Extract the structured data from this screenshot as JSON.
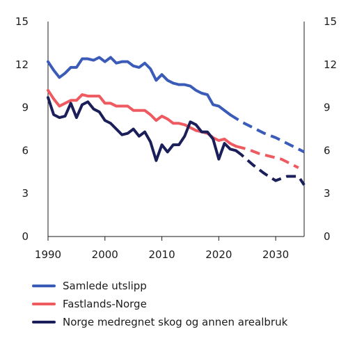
{
  "chart_data": {
    "type": "line",
    "title": "",
    "xlabel": "",
    "ylabel": "",
    "xlim": [
      1990,
      2035
    ],
    "ylim": [
      0,
      15
    ],
    "x_ticks": [
      1990,
      2000,
      2010,
      2020,
      2030
    ],
    "y_ticks": [
      0,
      3,
      6,
      9,
      12,
      15
    ],
    "y_axis_left": true,
    "y_axis_right": true,
    "grid": false,
    "legend_position": "bottom",
    "series": [
      {
        "name": "Samlede utslipp",
        "color": "#3a5bb8",
        "historical": [
          [
            1990,
            12.2
          ],
          [
            1991,
            11.6
          ],
          [
            1992,
            11.1
          ],
          [
            1993,
            11.4
          ],
          [
            1994,
            11.8
          ],
          [
            1995,
            11.8
          ],
          [
            1996,
            12.4
          ],
          [
            1997,
            12.4
          ],
          [
            1998,
            12.3
          ],
          [
            1999,
            12.5
          ],
          [
            2000,
            12.2
          ],
          [
            2001,
            12.5
          ],
          [
            2002,
            12.1
          ],
          [
            2003,
            12.2
          ],
          [
            2004,
            12.2
          ],
          [
            2005,
            11.9
          ],
          [
            2006,
            11.8
          ],
          [
            2007,
            12.1
          ],
          [
            2008,
            11.7
          ],
          [
            2009,
            10.9
          ],
          [
            2010,
            11.3
          ],
          [
            2011,
            10.9
          ],
          [
            2012,
            10.7
          ],
          [
            2013,
            10.6
          ],
          [
            2014,
            10.6
          ],
          [
            2015,
            10.5
          ],
          [
            2016,
            10.2
          ],
          [
            2017,
            10.0
          ],
          [
            2018,
            9.9
          ],
          [
            2019,
            9.2
          ],
          [
            2020,
            9.1
          ],
          [
            2021,
            8.8
          ],
          [
            2022,
            8.5
          ]
        ],
        "projection": [
          [
            2022,
            8.5
          ],
          [
            2024,
            8.0
          ],
          [
            2026,
            7.6
          ],
          [
            2028,
            7.2
          ],
          [
            2030,
            6.9
          ],
          [
            2032,
            6.5
          ],
          [
            2034,
            6.1
          ],
          [
            2035,
            5.9
          ]
        ]
      },
      {
        "name": "Fastlands-Norge",
        "color": "#ee5a5f",
        "historical": [
          [
            1990,
            10.2
          ],
          [
            1991,
            9.6
          ],
          [
            1992,
            9.1
          ],
          [
            1993,
            9.3
          ],
          [
            1994,
            9.5
          ],
          [
            1995,
            9.5
          ],
          [
            1996,
            9.9
          ],
          [
            1997,
            9.8
          ],
          [
            1998,
            9.8
          ],
          [
            1999,
            9.8
          ],
          [
            2000,
            9.3
          ],
          [
            2001,
            9.3
          ],
          [
            2002,
            9.1
          ],
          [
            2003,
            9.1
          ],
          [
            2004,
            9.1
          ],
          [
            2005,
            8.8
          ],
          [
            2006,
            8.8
          ],
          [
            2007,
            8.8
          ],
          [
            2008,
            8.5
          ],
          [
            2009,
            8.1
          ],
          [
            2010,
            8.4
          ],
          [
            2011,
            8.2
          ],
          [
            2012,
            7.9
          ],
          [
            2013,
            7.9
          ],
          [
            2014,
            7.8
          ],
          [
            2015,
            7.6
          ],
          [
            2016,
            7.4
          ],
          [
            2017,
            7.3
          ],
          [
            2018,
            7.2
          ],
          [
            2019,
            6.9
          ],
          [
            2020,
            6.7
          ],
          [
            2021,
            6.8
          ],
          [
            2022,
            6.5
          ],
          [
            2023,
            6.3
          ]
        ],
        "projection": [
          [
            2023,
            6.3
          ],
          [
            2025,
            6.1
          ],
          [
            2027,
            5.8
          ],
          [
            2029,
            5.6
          ],
          [
            2031,
            5.4
          ],
          [
            2033,
            5.0
          ],
          [
            2034,
            4.8
          ]
        ]
      },
      {
        "name": "Norge medregnet skog og annen arealbruk",
        "color": "#1a1f5a",
        "historical": [
          [
            1990,
            9.7
          ],
          [
            1991,
            8.5
          ],
          [
            1992,
            8.3
          ],
          [
            1993,
            8.4
          ],
          [
            1994,
            9.3
          ],
          [
            1995,
            8.3
          ],
          [
            1996,
            9.2
          ],
          [
            1997,
            9.4
          ],
          [
            1998,
            8.9
          ],
          [
            1999,
            8.7
          ],
          [
            2000,
            8.1
          ],
          [
            2001,
            7.9
          ],
          [
            2002,
            7.5
          ],
          [
            2003,
            7.1
          ],
          [
            2004,
            7.2
          ],
          [
            2005,
            7.5
          ],
          [
            2006,
            7.0
          ],
          [
            2007,
            7.3
          ],
          [
            2008,
            6.6
          ],
          [
            2009,
            5.3
          ],
          [
            2010,
            6.4
          ],
          [
            2011,
            5.9
          ],
          [
            2012,
            6.4
          ],
          [
            2013,
            6.4
          ],
          [
            2014,
            7.0
          ],
          [
            2015,
            8.0
          ],
          [
            2016,
            7.8
          ],
          [
            2017,
            7.3
          ],
          [
            2018,
            7.3
          ],
          [
            2019,
            6.8
          ],
          [
            2020,
            5.4
          ],
          [
            2021,
            6.5
          ],
          [
            2022,
            6.1
          ],
          [
            2023,
            6.0
          ]
        ],
        "projection": [
          [
            2023,
            6.0
          ],
          [
            2024,
            5.7
          ],
          [
            2026,
            5.0
          ],
          [
            2028,
            4.4
          ],
          [
            2030,
            3.9
          ],
          [
            2032,
            4.2
          ],
          [
            2034,
            4.2
          ],
          [
            2035,
            3.6
          ]
        ]
      }
    ]
  }
}
